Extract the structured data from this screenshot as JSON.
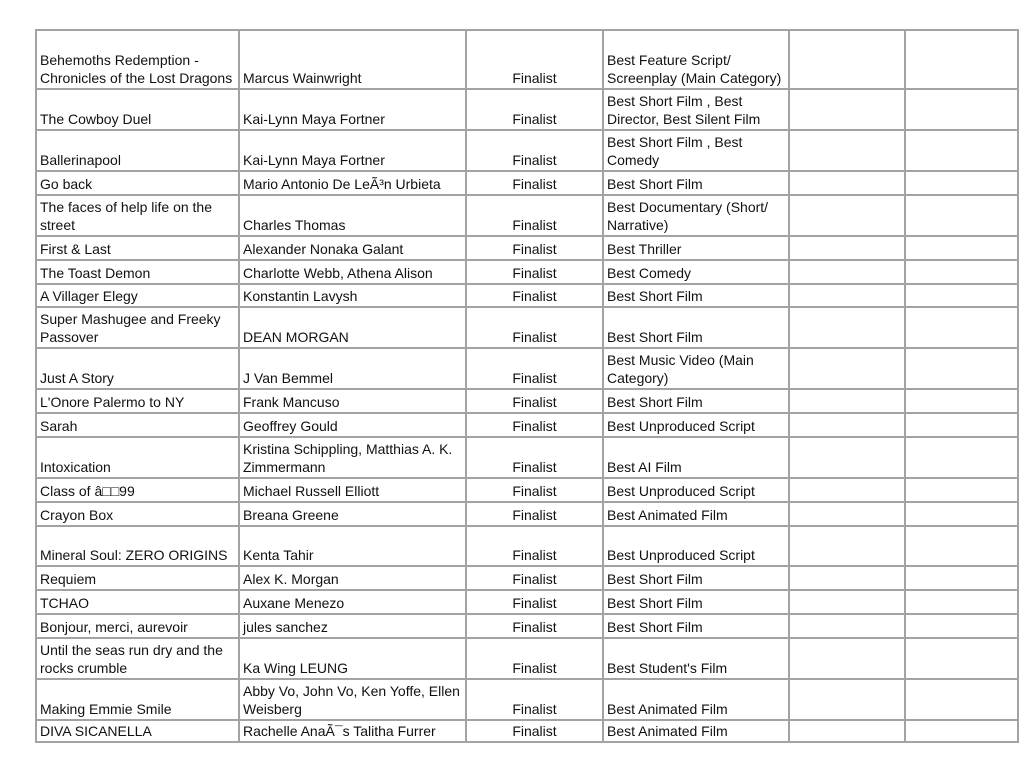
{
  "rows": [
    {
      "title": "Behemoths Redemption - Chronicles of the Lost Dragons",
      "author": "Marcus Wainwright",
      "status": "Finalist",
      "category": "Best Feature Script/ Screenplay (Main Category)"
    },
    {
      "title": "The Cowboy Duel",
      "author": "Kai-Lynn Maya Fortner",
      "status": "Finalist",
      "category": "Best Short Film , Best Director, Best Silent Film"
    },
    {
      "title": "Ballerinapool",
      "author": "Kai-Lynn Maya Fortner",
      "status": "Finalist",
      "category": "Best Short Film , Best Comedy"
    },
    {
      "title": "Go back",
      "author": "Mario Antonio De LeÃ³n Urbieta",
      "status": "Finalist",
      "category": "Best Short Film"
    },
    {
      "title": "The faces of help life on the street",
      "author": "Charles Thomas",
      "status": "Finalist",
      "category": "Best Documentary (Short/ Narrative)"
    },
    {
      "title": "First & Last",
      "author": "Alexander Nonaka Galant",
      "status": "Finalist",
      "category": "Best Thriller"
    },
    {
      "title": "The Toast Demon",
      "author": "Charlotte Webb, Athena Alison",
      "status": "Finalist",
      "category": "Best Comedy"
    },
    {
      "title": "A Villager Elegy",
      "author": "Konstantin Lavysh",
      "status": "Finalist",
      "category": "Best Short Film"
    },
    {
      "title": "Super Mashugee and Freeky Passover",
      "author": "DEAN MORGAN",
      "status": "Finalist",
      "category": "Best Short Film"
    },
    {
      "title": "Just A Story",
      "author": "J Van Bemmel",
      "status": "Finalist",
      "category": "Best Music Video (Main Category)"
    },
    {
      "title": "L'Onore Palermo to NY",
      "author": "Frank Mancuso",
      "status": "Finalist",
      "category": "Best Short Film"
    },
    {
      "title": "Sarah",
      "author": "Geoffrey Gould",
      "status": "Finalist",
      "category": "Best Unproduced Script"
    },
    {
      "title": "Intoxication",
      "author": "Kristina Schippling, Matthias A. K. Zimmermann",
      "status": "Finalist",
      "category": "Best AI Film"
    },
    {
      "title": "Class of â□□99",
      "author": "Michael Russell Elliott",
      "status": "Finalist",
      "category": "Best Unproduced Script"
    },
    {
      "title": "Crayon Box",
      "author": "Breana Greene",
      "status": "Finalist",
      "category": "Best Animated Film"
    },
    {
      "title": "Mineral Soul: ZERO ORIGINS",
      "author": "Kenta Tahir",
      "status": "Finalist",
      "category": "Best Unproduced Script"
    },
    {
      "title": "Requiem",
      "author": "Alex K. Morgan",
      "status": "Finalist",
      "category": "Best Short Film"
    },
    {
      "title": "TCHAO",
      "author": "Auxane Menezo",
      "status": "Finalist",
      "category": "Best Short Film"
    },
    {
      "title": "Bonjour, merci, aurevoir",
      "author": "jules sanchez",
      "status": "Finalist",
      "category": "Best Short Film"
    },
    {
      "title": "Until the seas run dry and the rocks crumble",
      "author": "Ka Wing LEUNG",
      "status": "Finalist",
      "category": "Best Student's Film"
    },
    {
      "title": "Making Emmie Smile",
      "author": "Abby Vo, John Vo, Ken Yoffe, Ellen Weisberg",
      "status": "Finalist",
      "category": "Best Animated Film"
    },
    {
      "title": "DIVA SICANELLA",
      "author": "Rachelle AnaÃ¯s Talitha Furrer",
      "status": "Finalist",
      "category": "Best Animated Film"
    }
  ]
}
